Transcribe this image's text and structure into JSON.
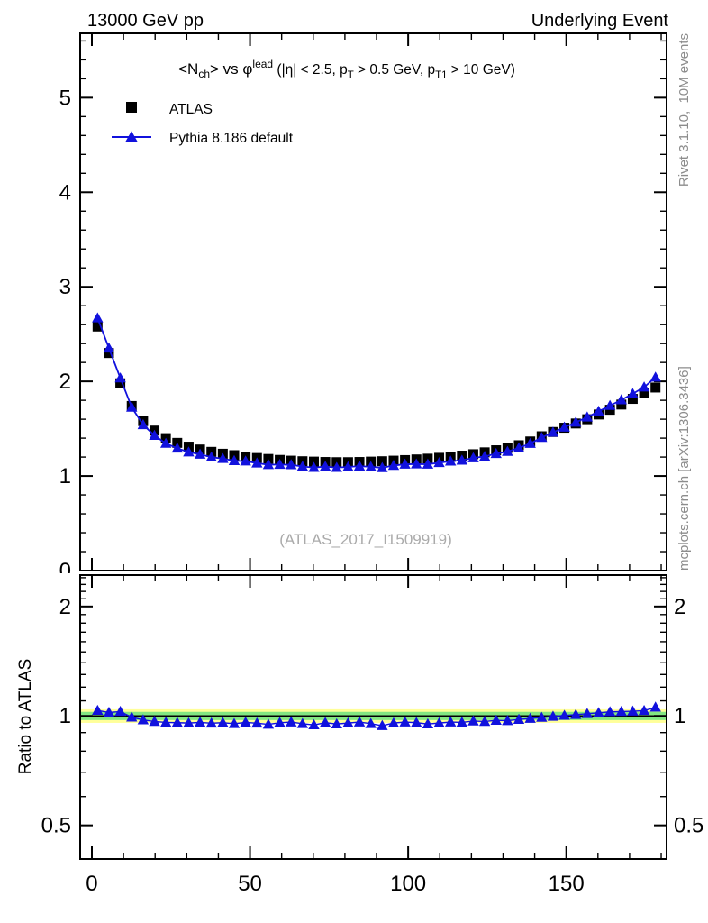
{
  "header": {
    "left": "13000 GeV pp",
    "right": "Underlying Event"
  },
  "side_notes": {
    "top_right": "Rivet 3.1.10,  10M events",
    "bottom_right": "mcplots.cern.ch [arXiv:1306.3436]"
  },
  "watermark": "(ATLAS_2017_I1509919)",
  "legend": {
    "items": [
      {
        "label": "ATLAS",
        "marker": "square",
        "color": "#000000"
      },
      {
        "label": "Pythia 8.186 default",
        "marker": "triangle-line",
        "color": "#1111dd"
      }
    ]
  },
  "colors": {
    "mc_blue": "#1111dd",
    "data_black": "#000000",
    "band_yellow": "#ffff99",
    "band_green": "#82e682",
    "gray_text": "#8c8c8c",
    "watermark_gray": "#aaaaaa"
  },
  "chart_data": {
    "type": "scatter",
    "title": "<N_ch> vs φ^lead (|η| < 2.5, p_T > 0.5 GeV, p_T1 > 10 GeV)",
    "title_segments": [
      {
        "t": "<N",
        "s": "n"
      },
      {
        "t": "ch",
        "s": "sub"
      },
      {
        "t": "> vs ",
        "s": "n"
      },
      {
        "t": "φ",
        "s": "n"
      },
      {
        "t": "lead",
        "s": "sup"
      },
      {
        "t": " (|η| < 2.5, p",
        "s": "n2"
      },
      {
        "t": "T",
        "s": "sub2"
      },
      {
        "t": " > 0.5 GeV, p",
        "s": "n2"
      },
      {
        "t": "T1",
        "s": "sub2"
      },
      {
        "t": " > 10 GeV)",
        "s": "n2"
      }
    ],
    "xlabel": "",
    "xlim": [
      -3.7,
      181.7
    ],
    "x_ticks": [
      0,
      50,
      100,
      150
    ],
    "x_minor_step": 10,
    "main_panel": {
      "ylim": [
        0,
        5.68
      ],
      "y_ticks": [
        0,
        1,
        2,
        3,
        4,
        5
      ],
      "y_minor_step": 0.2,
      "grid": false
    },
    "ratio_panel": {
      "scale": "log",
      "ylim": [
        0.404,
        2.44
      ],
      "y_ticks": [
        2,
        1,
        0.5
      ],
      "ylabel": "Ratio to ATLAS",
      "reference_line": 1,
      "band": {
        "yellow_halfwidth_frac": 0.043,
        "green_halfwidth_frac": 0.026
      }
    },
    "x": [
      1.8,
      5.4,
      9,
      12.6,
      16.2,
      19.8,
      23.4,
      27,
      30.6,
      34.2,
      37.8,
      41.4,
      45,
      48.6,
      52.2,
      55.8,
      59.4,
      63,
      66.6,
      70.2,
      73.8,
      77.4,
      81,
      84.6,
      88.2,
      91.8,
      95.4,
      99,
      102.6,
      106.2,
      109.8,
      113.4,
      117,
      120.6,
      124.2,
      127.8,
      131.4,
      135,
      138.6,
      142.2,
      145.8,
      149.4,
      153,
      156.6,
      160.2,
      163.8,
      167.4,
      171,
      174.6,
      178.2
    ],
    "series": [
      {
        "name": "ATLAS",
        "marker": "square",
        "color": "#000000",
        "values": [
          2.58,
          2.3,
          1.98,
          1.74,
          1.58,
          1.48,
          1.4,
          1.35,
          1.31,
          1.28,
          1.255,
          1.235,
          1.22,
          1.205,
          1.19,
          1.18,
          1.17,
          1.162,
          1.156,
          1.152,
          1.148,
          1.146,
          1.146,
          1.148,
          1.152,
          1.156,
          1.162,
          1.168,
          1.175,
          1.183,
          1.192,
          1.202,
          1.215,
          1.23,
          1.25,
          1.272,
          1.297,
          1.325,
          1.365,
          1.42,
          1.465,
          1.51,
          1.555,
          1.6,
          1.65,
          1.7,
          1.755,
          1.815,
          1.875,
          1.935
        ]
      },
      {
        "name": "Pythia 8.186 default",
        "marker": "triangle",
        "color": "#1111dd",
        "line": true,
        "values": [
          2.67,
          2.351,
          2.035,
          1.726,
          1.541,
          1.428,
          1.344,
          1.293,
          1.252,
          1.229,
          1.199,
          1.183,
          1.161,
          1.157,
          1.136,
          1.119,
          1.121,
          1.118,
          1.101,
          1.089,
          1.1,
          1.089,
          1.096,
          1.104,
          1.097,
          1.087,
          1.111,
          1.124,
          1.126,
          1.124,
          1.14,
          1.156,
          1.166,
          1.191,
          1.206,
          1.236,
          1.258,
          1.296,
          1.343,
          1.406,
          1.461,
          1.515,
          1.567,
          1.622,
          1.683,
          1.744,
          1.804,
          1.869,
          1.939,
          2.043
        ]
      }
    ],
    "ratio_series": {
      "name": "Pythia 8.186 default / ATLAS",
      "marker": "triangle",
      "color": "#1111dd",
      "line": true,
      "values": [
        1.035,
        1.022,
        1.028,
        0.992,
        0.975,
        0.965,
        0.96,
        0.958,
        0.956,
        0.96,
        0.955,
        0.958,
        0.952,
        0.96,
        0.955,
        0.948,
        0.958,
        0.962,
        0.952,
        0.945,
        0.958,
        0.95,
        0.956,
        0.962,
        0.952,
        0.94,
        0.956,
        0.962,
        0.958,
        0.95,
        0.956,
        0.962,
        0.96,
        0.968,
        0.965,
        0.972,
        0.97,
        0.978,
        0.984,
        0.99,
        0.997,
        1.003,
        1.008,
        1.014,
        1.02,
        1.026,
        1.028,
        1.03,
        1.034,
        1.056
      ]
    }
  }
}
